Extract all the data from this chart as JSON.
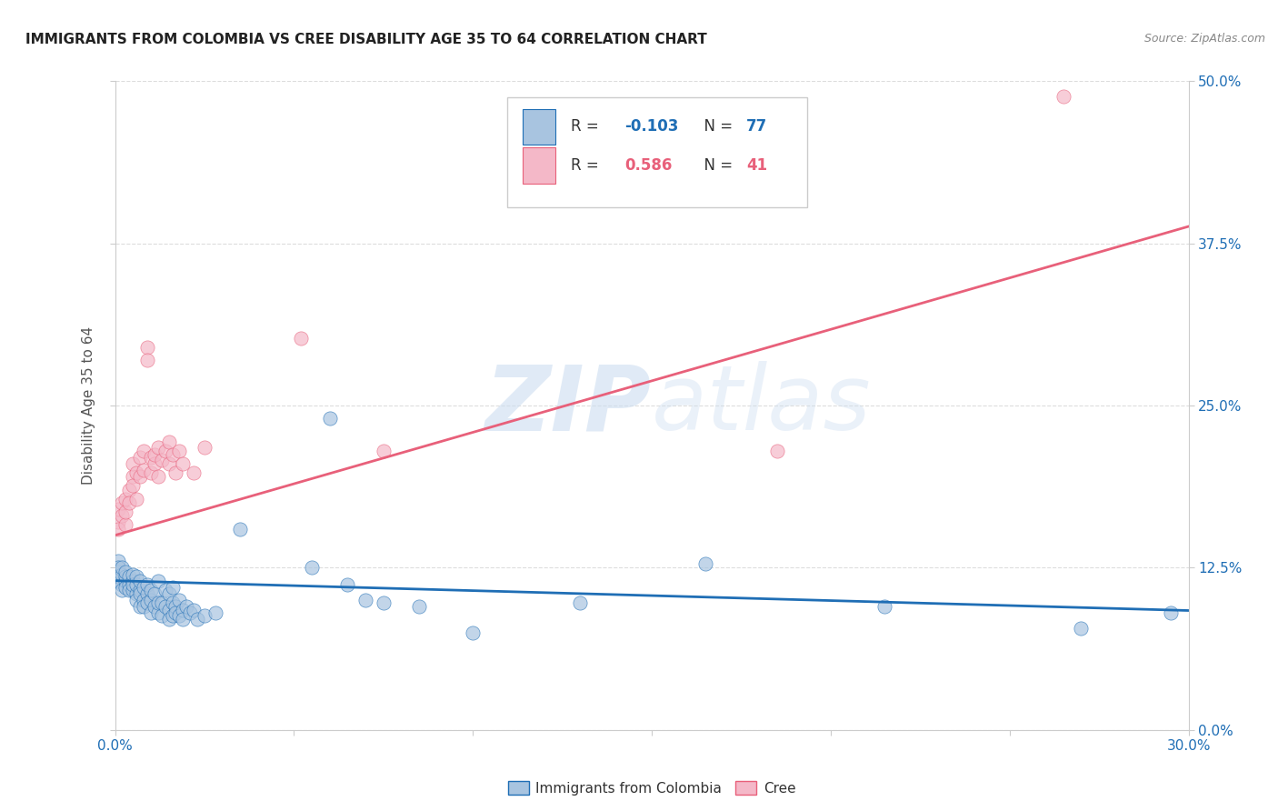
{
  "title": "IMMIGRANTS FROM COLOMBIA VS CREE DISABILITY AGE 35 TO 64 CORRELATION CHART",
  "source": "Source: ZipAtlas.com",
  "xmin": 0.0,
  "xmax": 0.3,
  "ymin": 0.0,
  "ymax": 0.5,
  "legend_r_blue": "-0.103",
  "legend_n_blue": "77",
  "legend_r_pink": "0.586",
  "legend_n_pink": "41",
  "legend_label_blue": "Immigrants from Colombia",
  "legend_label_pink": "Cree",
  "blue_scatter_color": "#a8c4e0",
  "pink_scatter_color": "#f4b8c8",
  "blue_line_color": "#1f6eb5",
  "pink_line_color": "#e8607a",
  "watermark_color": "#ccddf0",
  "grid_color": "#dddddd",
  "blue_points": [
    [
      0.001,
      0.13
    ],
    [
      0.001,
      0.122
    ],
    [
      0.001,
      0.115
    ],
    [
      0.001,
      0.118
    ],
    [
      0.001,
      0.125
    ],
    [
      0.002,
      0.112
    ],
    [
      0.002,
      0.12
    ],
    [
      0.002,
      0.108
    ],
    [
      0.002,
      0.125
    ],
    [
      0.003,
      0.115
    ],
    [
      0.003,
      0.118
    ],
    [
      0.003,
      0.11
    ],
    [
      0.003,
      0.122
    ],
    [
      0.004,
      0.112
    ],
    [
      0.004,
      0.108
    ],
    [
      0.004,
      0.118
    ],
    [
      0.005,
      0.115
    ],
    [
      0.005,
      0.108
    ],
    [
      0.005,
      0.12
    ],
    [
      0.005,
      0.112
    ],
    [
      0.006,
      0.105
    ],
    [
      0.006,
      0.112
    ],
    [
      0.006,
      0.118
    ],
    [
      0.006,
      0.1
    ],
    [
      0.007,
      0.108
    ],
    [
      0.007,
      0.095
    ],
    [
      0.007,
      0.115
    ],
    [
      0.007,
      0.105
    ],
    [
      0.008,
      0.1
    ],
    [
      0.008,
      0.11
    ],
    [
      0.008,
      0.095
    ],
    [
      0.009,
      0.105
    ],
    [
      0.009,
      0.098
    ],
    [
      0.009,
      0.112
    ],
    [
      0.01,
      0.1
    ],
    [
      0.01,
      0.09
    ],
    [
      0.01,
      0.108
    ],
    [
      0.011,
      0.095
    ],
    [
      0.011,
      0.105
    ],
    [
      0.012,
      0.09
    ],
    [
      0.012,
      0.098
    ],
    [
      0.012,
      0.115
    ],
    [
      0.013,
      0.098
    ],
    [
      0.013,
      0.088
    ],
    [
      0.014,
      0.095
    ],
    [
      0.014,
      0.108
    ],
    [
      0.015,
      0.092
    ],
    [
      0.015,
      0.105
    ],
    [
      0.015,
      0.085
    ],
    [
      0.016,
      0.098
    ],
    [
      0.016,
      0.088
    ],
    [
      0.016,
      0.11
    ],
    [
      0.017,
      0.095
    ],
    [
      0.017,
      0.09
    ],
    [
      0.018,
      0.088
    ],
    [
      0.018,
      0.1
    ],
    [
      0.019,
      0.092
    ],
    [
      0.019,
      0.085
    ],
    [
      0.02,
      0.095
    ],
    [
      0.021,
      0.09
    ],
    [
      0.022,
      0.092
    ],
    [
      0.023,
      0.085
    ],
    [
      0.025,
      0.088
    ],
    [
      0.028,
      0.09
    ],
    [
      0.035,
      0.155
    ],
    [
      0.055,
      0.125
    ],
    [
      0.06,
      0.24
    ],
    [
      0.065,
      0.112
    ],
    [
      0.07,
      0.1
    ],
    [
      0.075,
      0.098
    ],
    [
      0.085,
      0.095
    ],
    [
      0.1,
      0.075
    ],
    [
      0.13,
      0.098
    ],
    [
      0.165,
      0.128
    ],
    [
      0.215,
      0.095
    ],
    [
      0.27,
      0.078
    ],
    [
      0.295,
      0.09
    ]
  ],
  "pink_points": [
    [
      0.001,
      0.16
    ],
    [
      0.001,
      0.17
    ],
    [
      0.001,
      0.155
    ],
    [
      0.002,
      0.165
    ],
    [
      0.002,
      0.175
    ],
    [
      0.003,
      0.158
    ],
    [
      0.003,
      0.168
    ],
    [
      0.003,
      0.178
    ],
    [
      0.004,
      0.185
    ],
    [
      0.004,
      0.175
    ],
    [
      0.005,
      0.195
    ],
    [
      0.005,
      0.205
    ],
    [
      0.005,
      0.188
    ],
    [
      0.006,
      0.178
    ],
    [
      0.006,
      0.198
    ],
    [
      0.007,
      0.21
    ],
    [
      0.007,
      0.195
    ],
    [
      0.008,
      0.215
    ],
    [
      0.008,
      0.2
    ],
    [
      0.009,
      0.295
    ],
    [
      0.009,
      0.285
    ],
    [
      0.01,
      0.21
    ],
    [
      0.01,
      0.198
    ],
    [
      0.011,
      0.205
    ],
    [
      0.011,
      0.212
    ],
    [
      0.012,
      0.218
    ],
    [
      0.012,
      0.195
    ],
    [
      0.013,
      0.208
    ],
    [
      0.014,
      0.215
    ],
    [
      0.015,
      0.222
    ],
    [
      0.015,
      0.205
    ],
    [
      0.016,
      0.212
    ],
    [
      0.017,
      0.198
    ],
    [
      0.018,
      0.215
    ],
    [
      0.019,
      0.205
    ],
    [
      0.022,
      0.198
    ],
    [
      0.025,
      0.218
    ],
    [
      0.052,
      0.302
    ],
    [
      0.075,
      0.215
    ],
    [
      0.185,
      0.215
    ],
    [
      0.265,
      0.488
    ]
  ],
  "blue_line": [
    [
      0.0,
      0.115
    ],
    [
      0.3,
      0.092
    ]
  ],
  "pink_line": [
    [
      0.0,
      0.15
    ],
    [
      0.3,
      0.388
    ]
  ]
}
